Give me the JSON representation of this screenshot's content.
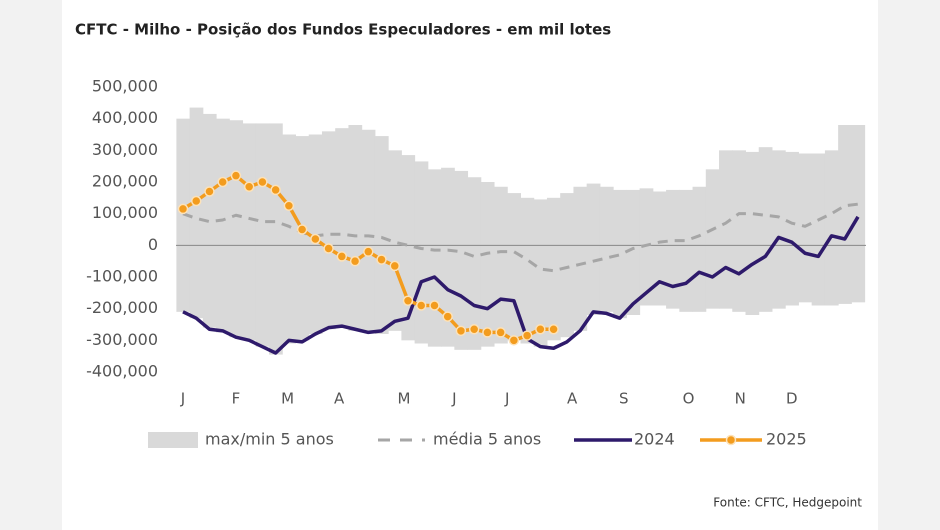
{
  "chart_data": {
    "type": "line",
    "title": "CFTC - Milho - Posição dos Fundos Especuladores - em mil lotes",
    "source": "Fonte: CFTC, Hedgepoint",
    "x": [
      1,
      2,
      3,
      4,
      5,
      6,
      7,
      8,
      9,
      10,
      11,
      12,
      13,
      14,
      15,
      16,
      17,
      18,
      19,
      20,
      21,
      22,
      23,
      24,
      25,
      26,
      27,
      28,
      29,
      30,
      31,
      32,
      33,
      34,
      35,
      36,
      37,
      38,
      39,
      40,
      41,
      42,
      43,
      44,
      45,
      46,
      47,
      48,
      49,
      50,
      51,
      52
    ],
    "xlim": [
      1,
      52
    ],
    "xticks": [
      {
        "value": 1,
        "label": "J"
      },
      {
        "value": 5,
        "label": "F"
      },
      {
        "value": 8.9,
        "label": "M"
      },
      {
        "value": 12.8,
        "label": "A"
      },
      {
        "value": 17.7,
        "label": "M"
      },
      {
        "value": 21.5,
        "label": "J"
      },
      {
        "value": 25.5,
        "label": "J"
      },
      {
        "value": 30.4,
        "label": "A"
      },
      {
        "value": 34.3,
        "label": "S"
      },
      {
        "value": 39.2,
        "label": "O"
      },
      {
        "value": 43.1,
        "label": "N"
      },
      {
        "value": 47,
        "label": "D"
      }
    ],
    "ylim": [
      -400000,
      500000
    ],
    "yticks": [
      {
        "value": 500000,
        "label": "500,000"
      },
      {
        "value": 400000,
        "label": "400,000"
      },
      {
        "value": 300000,
        "label": "300,000"
      },
      {
        "value": 200000,
        "label": "200,000"
      },
      {
        "value": 100000,
        "label": "100,000"
      },
      0,
      {
        "value": -100000,
        "label": "-100,000"
      },
      {
        "value": -200000,
        "label": "-200,000"
      },
      {
        "value": -300000,
        "label": "-300,000"
      },
      {
        "value": -400000,
        "label": "-400,000"
      }
    ],
    "series": [
      {
        "name": "max/min 5 anos",
        "color": "#d9d9d9",
        "max": [
          400000,
          435000,
          415000,
          400000,
          395000,
          385000,
          385000,
          385000,
          350000,
          345000,
          350000,
          360000,
          370000,
          380000,
          365000,
          345000,
          300000,
          285000,
          265000,
          240000,
          245000,
          235000,
          215000,
          200000,
          185000,
          165000,
          150000,
          145000,
          150000,
          165000,
          185000,
          195000,
          185000,
          175000,
          175000,
          180000,
          170000,
          175000,
          175000,
          185000,
          240000,
          300000,
          300000,
          295000,
          310000,
          300000,
          295000,
          290000,
          290000,
          300000,
          380000,
          380000
        ],
        "min": [
          -210000,
          -230000,
          -260000,
          -275000,
          -290000,
          -300000,
          -320000,
          -345000,
          -310000,
          -300000,
          -280000,
          -265000,
          -260000,
          -270000,
          -275000,
          -280000,
          -270000,
          -300000,
          -310000,
          -320000,
          -320000,
          -330000,
          -330000,
          -320000,
          -310000,
          -300000,
          -310000,
          -320000,
          -300000,
          -290000,
          -270000,
          -220000,
          -210000,
          -230000,
          -220000,
          -190000,
          -190000,
          -200000,
          -210000,
          -210000,
          -200000,
          -200000,
          -210000,
          -220000,
          -210000,
          -200000,
          -190000,
          -180000,
          -190000,
          -190000,
          -185000,
          -180000
        ]
      },
      {
        "name": "média 5 anos",
        "color": "#a6a6a6",
        "dashed": true,
        "values": [
          100000,
          85000,
          75000,
          80000,
          95000,
          85000,
          75000,
          75000,
          60000,
          40000,
          30000,
          35000,
          35000,
          30000,
          30000,
          25000,
          10000,
          0,
          -10000,
          -15000,
          -15000,
          -20000,
          -35000,
          -25000,
          -20000,
          -20000,
          -45000,
          -75000,
          -80000,
          -70000,
          -60000,
          -50000,
          -40000,
          -30000,
          -10000,
          0,
          10000,
          15000,
          15000,
          30000,
          50000,
          70000,
          100000,
          100000,
          95000,
          90000,
          70000,
          60000,
          80000,
          100000,
          125000,
          130000
        ]
      },
      {
        "name": "2024",
        "color": "#2e1a6b",
        "values": [
          -210000,
          -230000,
          -265000,
          -270000,
          -290000,
          -300000,
          -320000,
          -340000,
          -300000,
          -305000,
          -280000,
          -260000,
          -255000,
          -265000,
          -275000,
          -270000,
          -240000,
          -230000,
          -115000,
          -100000,
          -140000,
          -160000,
          -190000,
          -200000,
          -170000,
          -175000,
          -295000,
          -320000,
          -325000,
          -305000,
          -270000,
          -210000,
          -215000,
          -230000,
          -185000,
          -150000,
          -115000,
          -130000,
          -120000,
          -85000,
          -100000,
          -70000,
          -90000,
          -60000,
          -35000,
          25000,
          10000,
          -25000,
          -35000,
          30000,
          20000,
          90000
        ]
      },
      {
        "name": "2025",
        "color": "#f39c1e",
        "markers": true,
        "values": [
          115000,
          140000,
          170000,
          200000,
          220000,
          185000,
          200000,
          175000,
          125000,
          50000,
          20000,
          -10000,
          -35000,
          -50000,
          -20000,
          -45000,
          -65000,
          -175000,
          -190000,
          -190000,
          -225000,
          -270000,
          -265000,
          -275000,
          -275000,
          -300000,
          -285000,
          -265000,
          -265000,
          null,
          null,
          null,
          null,
          null,
          null,
          null,
          null,
          null,
          null,
          null,
          null,
          null,
          null,
          null,
          null,
          null,
          null,
          null,
          null,
          null,
          null,
          null
        ]
      }
    ]
  }
}
